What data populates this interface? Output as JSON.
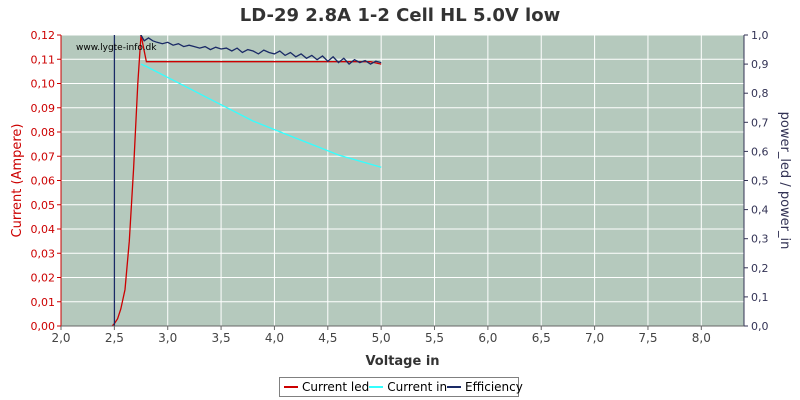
{
  "chart_data": {
    "type": "line",
    "title": "LD-29 2.8A 1-2 Cell HL 5.0V low",
    "watermark": "www.lygte-info.dk",
    "xlabel": "Voltage in",
    "ylabel_left": "Current (Ampere)",
    "ylabel_right": "power_led / power_in",
    "xlim": [
      2.0,
      8.4
    ],
    "ylim_left": [
      0,
      0.12
    ],
    "ylim_right": [
      0,
      1.0
    ],
    "x_ticks": [
      "2,0",
      "2,5",
      "3,0",
      "3,5",
      "4,0",
      "4,5",
      "5,0",
      "5,5",
      "6,0",
      "6,5",
      "7,0",
      "7,5",
      "8,0"
    ],
    "y_ticks_left": [
      "0,00",
      "0,01",
      "0,02",
      "0,03",
      "0,04",
      "0,05",
      "0,06",
      "0,07",
      "0,08",
      "0,09",
      "0,10",
      "0,11",
      "0,12"
    ],
    "y_ticks_right": [
      "0,0",
      "0,1",
      "0,2",
      "0,3",
      "0,4",
      "0,5",
      "0,6",
      "0,7",
      "0,8",
      "0,9",
      "1,0"
    ],
    "grid": true,
    "legend_position": "bottom",
    "colors": {
      "plot_bg": "#b5c9bd",
      "grid": "#ffffff",
      "current_led": "#cc0000",
      "current_in": "#33ffff",
      "efficiency": "#1a2a66",
      "left_axis": "#cc0000",
      "right_axis": "#333355"
    },
    "series": [
      {
        "name": "Current led",
        "axis": "left",
        "x": [
          2.48,
          2.5,
          2.53,
          2.56,
          2.6,
          2.64,
          2.68,
          2.72,
          2.75,
          2.8,
          3.0,
          3.2,
          3.4,
          3.6,
          3.8,
          4.0,
          4.2,
          4.4,
          4.6,
          4.8,
          4.9,
          5.0
        ],
        "y": [
          0.0,
          0.001,
          0.003,
          0.007,
          0.015,
          0.035,
          0.065,
          0.1,
          0.12,
          0.109,
          0.109,
          0.109,
          0.109,
          0.109,
          0.109,
          0.109,
          0.109,
          0.109,
          0.109,
          0.109,
          0.109,
          0.108
        ]
      },
      {
        "name": "Current in",
        "axis": "left",
        "x": [
          2.75,
          2.8,
          3.0,
          3.2,
          3.4,
          3.6,
          3.8,
          4.0,
          4.2,
          4.4,
          4.6,
          4.8,
          5.0
        ],
        "y": [
          0.108,
          0.107,
          0.1025,
          0.098,
          0.0935,
          0.089,
          0.0845,
          0.081,
          0.0775,
          0.074,
          0.0705,
          0.068,
          0.0655
        ]
      },
      {
        "name": "Efficiency",
        "axis": "right",
        "x": [
          2.5,
          2.5,
          2.52,
          2.75,
          2.78,
          2.82,
          2.86,
          2.9,
          2.95,
          3.0,
          3.05,
          3.1,
          3.15,
          3.2,
          3.25,
          3.3,
          3.35,
          3.4,
          3.45,
          3.5,
          3.55,
          3.6,
          3.65,
          3.7,
          3.75,
          3.8,
          3.85,
          3.9,
          3.95,
          4.0,
          4.05,
          4.1,
          4.15,
          4.2,
          4.25,
          4.3,
          4.35,
          4.4,
          4.45,
          4.5,
          4.55,
          4.6,
          4.65,
          4.7,
          4.75,
          4.8,
          4.85,
          4.9,
          4.95,
          5.0
        ],
        "y": [
          0.0,
          1.02,
          1.05,
          1.0,
          0.98,
          0.99,
          0.98,
          0.975,
          0.97,
          0.975,
          0.965,
          0.97,
          0.96,
          0.965,
          0.96,
          0.955,
          0.96,
          0.95,
          0.958,
          0.952,
          0.955,
          0.945,
          0.955,
          0.94,
          0.95,
          0.945,
          0.935,
          0.948,
          0.94,
          0.935,
          0.945,
          0.93,
          0.94,
          0.925,
          0.935,
          0.92,
          0.93,
          0.915,
          0.928,
          0.91,
          0.925,
          0.905,
          0.92,
          0.9,
          0.915,
          0.905,
          0.912,
          0.9,
          0.91,
          0.905
        ]
      }
    ]
  }
}
